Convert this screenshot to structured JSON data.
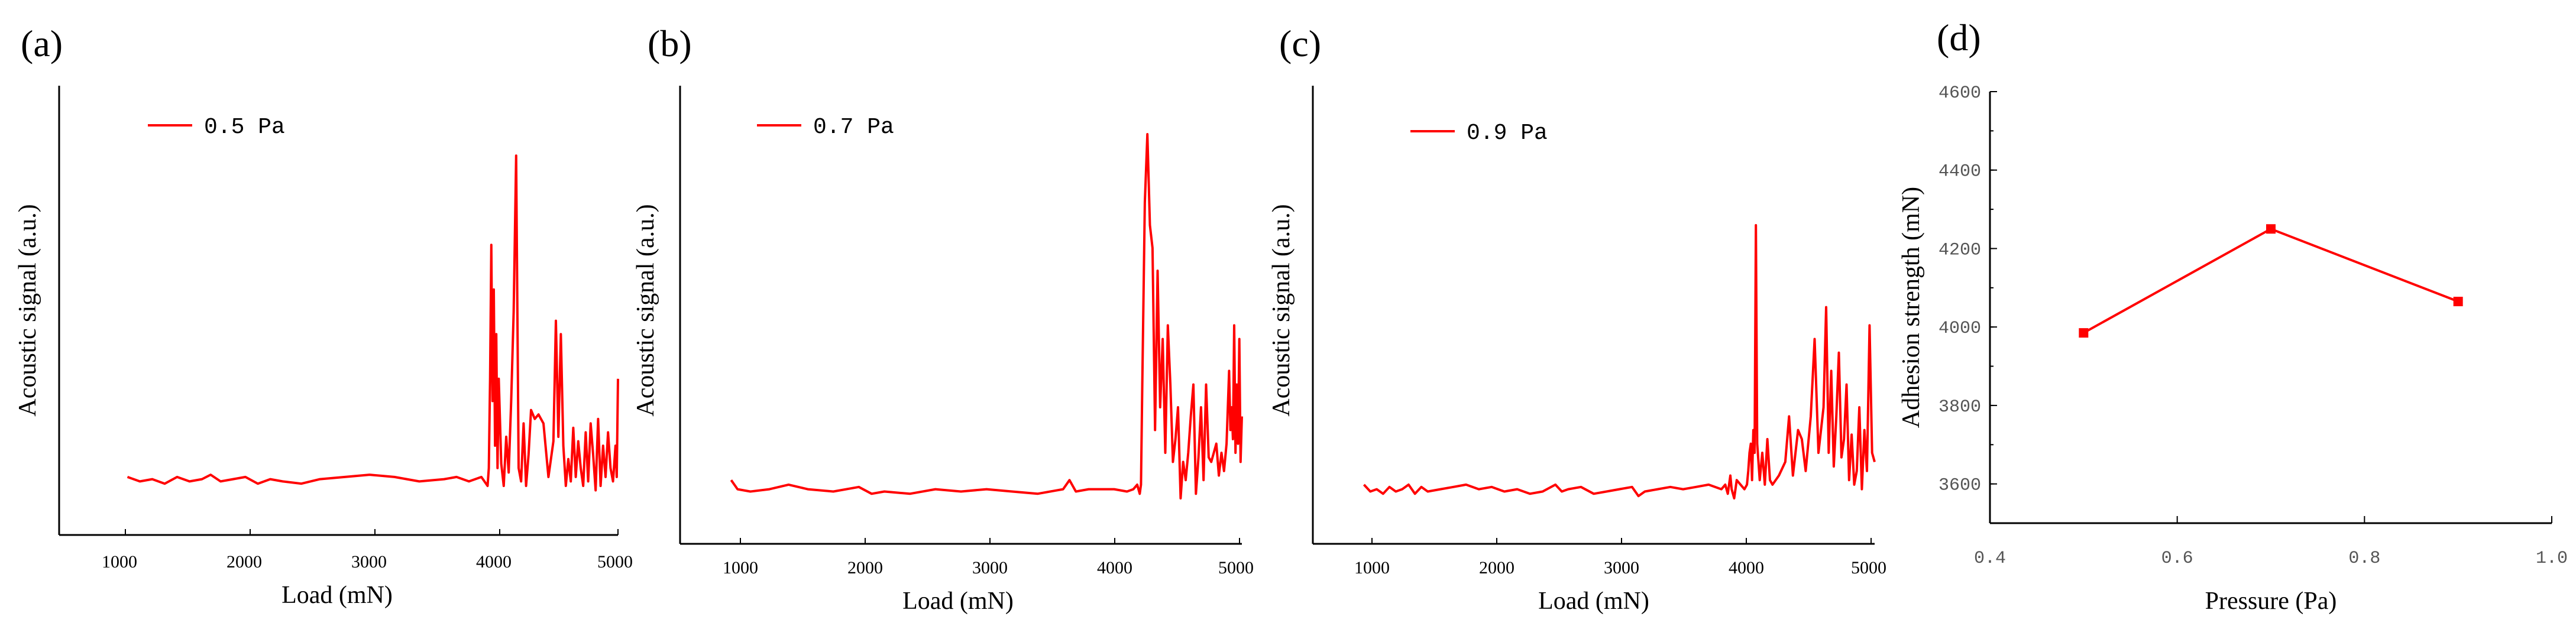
{
  "accent_color": "#ff0000",
  "axis_color": "#000000",
  "chart_data": [
    {
      "type": "line",
      "panel_label": "(a)",
      "legend": "0.5 Pa",
      "xlabel": "Load (mN)",
      "ylabel": "Acoustic signal (a.u.)",
      "xlim": [
        500,
        5000
      ],
      "ylim": [
        0,
        10
      ],
      "xticks": [
        "1000",
        "2000",
        "3000",
        "4000",
        "5000"
      ],
      "series": [
        {
          "name": "0.5 Pa",
          "x": [
            1050,
            1150,
            1250,
            1350,
            1450,
            1550,
            1650,
            1720,
            1800,
            1900,
            2000,
            2100,
            2200,
            2300,
            2450,
            2600,
            2800,
            3000,
            3200,
            3400,
            3600,
            3700,
            3800,
            3900,
            3950,
            3960,
            3970,
            3980,
            3990,
            4000,
            4010,
            4020,
            4030,
            4040,
            4060,
            4080,
            4100,
            4120,
            4140,
            4160,
            4180,
            4200,
            4220,
            4240,
            4260,
            4280,
            4300,
            4330,
            4360,
            4400,
            4440,
            4480,
            4500,
            4520,
            4540,
            4560,
            4580,
            4600,
            4620,
            4640,
            4660,
            4680,
            4700,
            4720,
            4740,
            4760,
            4780,
            4800,
            4820,
            4840,
            4860,
            4880,
            4900,
            4920,
            4940,
            4960,
            4980,
            4990,
            5000
          ],
          "values": [
            1.3,
            1.2,
            1.25,
            1.15,
            1.3,
            1.2,
            1.25,
            1.35,
            1.2,
            1.25,
            1.3,
            1.15,
            1.25,
            1.2,
            1.15,
            1.25,
            1.3,
            1.35,
            1.3,
            1.2,
            1.25,
            1.3,
            1.2,
            1.3,
            1.1,
            1.5,
            3.5,
            6.5,
            3.0,
            5.5,
            2.0,
            4.5,
            1.5,
            3.5,
            1.6,
            1.1,
            2.2,
            1.4,
            3.0,
            5.0,
            8.5,
            1.5,
            1.2,
            2.5,
            1.1,
            1.8,
            2.8,
            2.6,
            2.7,
            2.5,
            1.3,
            2.1,
            4.8,
            2.2,
            4.5,
            2.0,
            1.1,
            1.7,
            1.2,
            2.4,
            1.3,
            2.1,
            1.5,
            1.1,
            2.3,
            1.2,
            2.5,
            1.8,
            1.0,
            2.6,
            1.1,
            2.0,
            1.3,
            2.3,
            1.5,
            1.2,
            2.0,
            1.3,
            3.5
          ]
        }
      ]
    },
    {
      "type": "line",
      "panel_label": "(b)",
      "legend": "0.7 Pa",
      "xlabel": "Load (mN)",
      "ylabel": "Acoustic signal (a.u.)",
      "xlim": [
        600,
        5000
      ],
      "ylim": [
        0,
        10
      ],
      "xticks": [
        "1000",
        "2000",
        "3000",
        "4000",
        "5000"
      ],
      "series": [
        {
          "name": "0.7 Pa",
          "x": [
            1000,
            1050,
            1150,
            1300,
            1450,
            1600,
            1800,
            2000,
            2100,
            2200,
            2400,
            2600,
            2800,
            3000,
            3200,
            3400,
            3600,
            3650,
            3700,
            3800,
            4000,
            4100,
            4150,
            4180,
            4200,
            4210,
            4220,
            4240,
            4260,
            4280,
            4300,
            4320,
            4340,
            4360,
            4380,
            4400,
            4420,
            4440,
            4460,
            4480,
            4500,
            4520,
            4540,
            4560,
            4580,
            4600,
            4620,
            4640,
            4660,
            4680,
            4700,
            4720,
            4740,
            4760,
            4780,
            4800,
            4820,
            4840,
            4860,
            4880,
            4900,
            4910,
            4920,
            4930,
            4940,
            4950,
            4960,
            4970,
            4980,
            4990,
            5000
          ],
          "values": [
            1.4,
            1.2,
            1.15,
            1.2,
            1.3,
            1.2,
            1.15,
            1.25,
            1.1,
            1.15,
            1.1,
            1.2,
            1.15,
            1.2,
            1.15,
            1.1,
            1.2,
            1.4,
            1.15,
            1.2,
            1.2,
            1.15,
            1.2,
            1.3,
            1.1,
            1.3,
            3.5,
            7.5,
            9.0,
            7.0,
            6.5,
            2.5,
            6.0,
            3.0,
            4.5,
            2.0,
            4.8,
            3.5,
            1.8,
            2.3,
            3.0,
            1.0,
            1.8,
            1.4,
            2.0,
            2.8,
            3.5,
            1.1,
            1.9,
            3.0,
            1.4,
            3.5,
            1.9,
            1.8,
            2.0,
            2.2,
            1.5,
            2.0,
            1.6,
            2.2,
            3.8,
            2.5,
            3.0,
            2.3,
            4.8,
            2.0,
            3.5,
            2.2,
            4.5,
            1.8,
            2.8
          ]
        }
      ]
    },
    {
      "type": "line",
      "panel_label": "(c)",
      "legend": "0.9 Pa",
      "xlabel": "Load (mN)",
      "ylabel": "Acoustic signal (a.u.)",
      "xlim": [
        600,
        5000
      ],
      "ylim": [
        0,
        10
      ],
      "xticks": [
        "1000",
        "2000",
        "3000",
        "4000",
        "5000"
      ],
      "series": [
        {
          "name": "0.9 Pa",
          "x": [
            1000,
            1050,
            1100,
            1150,
            1200,
            1250,
            1300,
            1350,
            1400,
            1450,
            1500,
            1600,
            1700,
            1800,
            1900,
            2000,
            2100,
            2200,
            2300,
            2400,
            2500,
            2550,
            2600,
            2700,
            2800,
            2900,
            3000,
            3100,
            3150,
            3200,
            3300,
            3400,
            3500,
            3600,
            3700,
            3750,
            3800,
            3830,
            3850,
            3870,
            3880,
            3900,
            3920,
            3950,
            3980,
            4000,
            4010,
            4020,
            4030,
            4040,
            4050,
            4060,
            4070,
            4080,
            4100,
            4120,
            4140,
            4160,
            4180,
            4200,
            4250,
            4300,
            4330,
            4360,
            4400,
            4430,
            4460,
            4500,
            4530,
            4560,
            4580,
            4600,
            4620,
            4640,
            4660,
            4680,
            4700,
            4720,
            4740,
            4760,
            4780,
            4800,
            4820,
            4840,
            4860,
            4880,
            4900,
            4920,
            4940,
            4960,
            4980,
            5000
          ],
          "values": [
            1.3,
            1.15,
            1.2,
            1.1,
            1.25,
            1.15,
            1.2,
            1.3,
            1.1,
            1.25,
            1.15,
            1.2,
            1.25,
            1.3,
            1.2,
            1.25,
            1.15,
            1.2,
            1.1,
            1.15,
            1.3,
            1.15,
            1.2,
            1.25,
            1.1,
            1.15,
            1.2,
            1.25,
            1.05,
            1.15,
            1.2,
            1.25,
            1.2,
            1.25,
            1.3,
            1.25,
            1.2,
            1.3,
            1.1,
            1.5,
            1.2,
            1.0,
            1.4,
            1.3,
            1.2,
            1.3,
            1.6,
            2.0,
            2.2,
            1.4,
            2.5,
            2.0,
            7.0,
            2.2,
            1.4,
            2.0,
            1.3,
            2.3,
            1.4,
            1.3,
            1.5,
            1.8,
            2.8,
            1.5,
            2.5,
            2.3,
            1.6,
            2.8,
            4.5,
            2.0,
            2.5,
            3.0,
            5.2,
            2.0,
            3.8,
            1.7,
            2.8,
            4.2,
            1.9,
            2.3,
            3.5,
            1.4,
            2.4,
            1.3,
            1.6,
            3.0,
            1.2,
            2.5,
            1.6,
            4.8,
            2.0,
            1.8
          ]
        }
      ]
    },
    {
      "type": "line",
      "panel_label": "(d)",
      "xlabel": "Pressure (Pa)",
      "ylabel": "Adhesion strength (mN)",
      "xlim": [
        0.4,
        1.0
      ],
      "ylim": [
        3500,
        4600
      ],
      "xticks": [
        "0.4",
        "0.6",
        "0.8",
        "1.0"
      ],
      "yticks": [
        "3600",
        "3800",
        "4000",
        "4200",
        "4400",
        "4600"
      ],
      "series": [
        {
          "name": "Adhesion strength",
          "x": [
            0.5,
            0.7,
            0.9
          ],
          "values": [
            3985,
            4250,
            4065
          ]
        }
      ]
    }
  ]
}
